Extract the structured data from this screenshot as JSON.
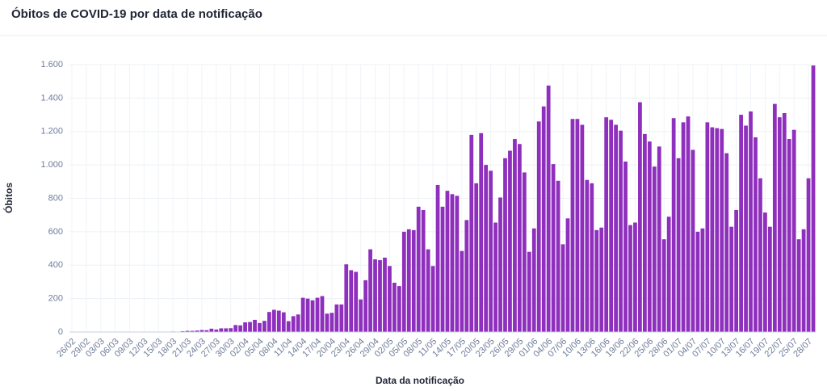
{
  "chart_data": {
    "type": "bar",
    "title": "Óbitos de COVID-19 por data de notificação",
    "y_label": "Óbitos",
    "x_label": "Data da notificação",
    "color": "#8f2fbd",
    "grid": true,
    "ylim": [
      0,
      1600
    ],
    "yticks": [
      0,
      200,
      400,
      600,
      800,
      {
        "value": 1000,
        "label": "1.000"
      },
      {
        "value": 1200,
        "label": "1.200"
      },
      {
        "value": 1400,
        "label": "1.400"
      },
      {
        "value": 1600,
        "label": "1.600"
      }
    ],
    "categories": [
      "26/02",
      null,
      null,
      "29/02",
      null,
      null,
      "03/03",
      null,
      null,
      "06/03",
      null,
      null,
      "09/03",
      null,
      null,
      "12/03",
      null,
      null,
      "15/03",
      null,
      null,
      "18/03",
      null,
      null,
      "21/03",
      null,
      null,
      "24/03",
      null,
      null,
      "27/03",
      null,
      null,
      "30/03",
      null,
      null,
      "02/04",
      null,
      null,
      "05/04",
      null,
      null,
      "08/04",
      null,
      null,
      "11/04",
      null,
      null,
      "14/04",
      null,
      null,
      "17/04",
      null,
      null,
      "20/04",
      null,
      null,
      "23/04",
      null,
      null,
      "26/04",
      null,
      null,
      "29/04",
      null,
      null,
      "02/05",
      null,
      null,
      "05/05",
      null,
      null,
      "08/05",
      null,
      null,
      "11/05",
      null,
      null,
      "14/05",
      null,
      null,
      "17/05",
      null,
      null,
      "20/05",
      null,
      null,
      "23/05",
      null,
      null,
      "26/05",
      null,
      null,
      "29/05",
      null,
      null,
      "01/06",
      null,
      null,
      "04/06",
      null,
      null,
      "07/06",
      null,
      null,
      "10/06",
      null,
      null,
      "13/06",
      null,
      null,
      "16/06",
      null,
      null,
      "19/06",
      null,
      null,
      "22/06",
      null,
      null,
      "25/06",
      null,
      null,
      "28/06",
      null,
      null,
      "01/07",
      null,
      null,
      "04/07",
      null,
      null,
      "07/07",
      null,
      null,
      "10/07",
      null,
      null,
      "13/07",
      null,
      null,
      "16/07",
      null,
      null,
      "19/07",
      null,
      null,
      "22/07",
      null,
      null,
      "25/07",
      null,
      null,
      "28/07",
      null
    ],
    "values": [
      0,
      0,
      0,
      0,
      0,
      0,
      0,
      0,
      0,
      0,
      0,
      0,
      0,
      0,
      0,
      0,
      0,
      0,
      0,
      0,
      1,
      3,
      2,
      5,
      7,
      7,
      9,
      12,
      11,
      20,
      15,
      22,
      22,
      23,
      42,
      40,
      58,
      60,
      73,
      54,
      67,
      120,
      133,
      128,
      118,
      65,
      95,
      105,
      205,
      200,
      190,
      205,
      215,
      110,
      115,
      165,
      165,
      405,
      370,
      360,
      195,
      310,
      495,
      435,
      430,
      445,
      395,
      295,
      275,
      600,
      615,
      610,
      750,
      730,
      495,
      395,
      880,
      750,
      845,
      825,
      815,
      485,
      670,
      1180,
      890,
      1190,
      1000,
      965,
      655,
      805,
      1040,
      1085,
      1155,
      1125,
      955,
      480,
      620,
      1260,
      1350,
      1475,
      1005,
      905,
      525,
      680,
      1275,
      1275,
      1240,
      910,
      890,
      610,
      625,
      1285,
      1270,
      1240,
      1205,
      1020,
      640,
      655,
      1375,
      1185,
      1140,
      990,
      1110,
      555,
      690,
      1280,
      1040,
      1255,
      1290,
      1090,
      600,
      620,
      1255,
      1225,
      1220,
      1215,
      1070,
      630,
      730,
      1300,
      1235,
      1320,
      1165,
      920,
      715,
      630,
      1365,
      1285,
      1310,
      1155,
      1210,
      555,
      615,
      920,
      1595
    ]
  }
}
